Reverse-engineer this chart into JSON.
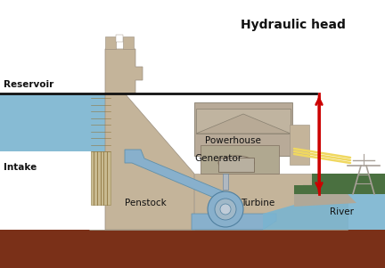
{
  "bg_color": "#ffffff",
  "water_color": "#7ab4d0",
  "dam_color": "#c4b49a",
  "dam_dark": "#b0a088",
  "ground_color": "#7a3018",
  "grass_color": "#4a7040",
  "powerhouse_color": "#b8aa98",
  "penstock_water_color": "#88b0cc",
  "transmission_color": "#f0d860",
  "tower_color": "#a8a098",
  "water_line_color": "#111111",
  "arrow_color": "#cc0000",
  "label_color": "#111111",
  "reservoir_label": "Reservoir",
  "intake_label": "Intake",
  "penstock_label": "Penstock",
  "powerhouse_label": "Powerhouse",
  "generator_label": "Generator",
  "turbine_label": "Turbine",
  "river_label": "River",
  "hydraulic_head_label": "Hydraulic head"
}
